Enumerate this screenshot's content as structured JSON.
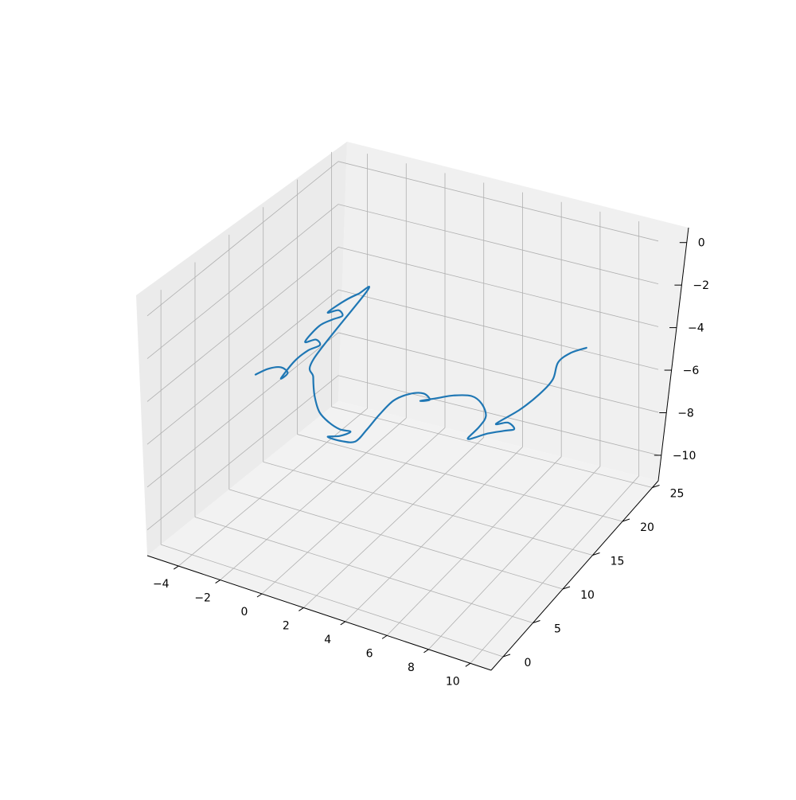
{
  "chart_data": {
    "type": "line3d",
    "title": "",
    "xlabel": "",
    "ylabel": "",
    "zlabel": "",
    "grid": true,
    "legend": "none",
    "series_color": "#1f77b4",
    "pane_colors": {
      "floor": "#f2f2f2",
      "left": "#ebebeb",
      "back": "#f0f0f0"
    },
    "x_ticks": [
      "−4",
      "−2",
      "0",
      "2",
      "4",
      "6",
      "8",
      "10"
    ],
    "y_ticks": [
      "0",
      "5",
      "10",
      "15",
      "20",
      "25"
    ],
    "z_ticks": [
      "−10",
      "−8",
      "−6",
      "−4",
      "−2",
      "0"
    ],
    "x_tick_values": [
      -4,
      -2,
      0,
      2,
      4,
      6,
      8,
      10
    ],
    "y_tick_values": [
      0,
      5,
      10,
      15,
      20,
      25
    ],
    "z_tick_values": [
      -10,
      -8,
      -6,
      -4,
      -2,
      0
    ],
    "xlim": [
      -5.5,
      11
    ],
    "ylim": [
      -2,
      26
    ],
    "zlim": [
      -11.2,
      0.7
    ],
    "series": [
      {
        "values_note": "approximate trace of the 3D curve (x, y, z)",
        "points": [
          [
            -4.7,
            11.5,
            -6.0
          ],
          [
            -4.3,
            12.2,
            -5.8
          ],
          [
            -3.8,
            12.6,
            -5.7
          ],
          [
            -3.4,
            12.4,
            -5.8
          ],
          [
            -3.6,
            12.0,
            -6.0
          ],
          [
            -3.1,
            12.5,
            -5.2
          ],
          [
            -2.6,
            13.0,
            -4.7
          ],
          [
            -2.2,
            13.6,
            -4.5
          ],
          [
            -2.5,
            13.9,
            -4.4
          ],
          [
            -2.9,
            13.5,
            -4.5
          ],
          [
            -2.5,
            14.4,
            -3.9
          ],
          [
            -2.0,
            14.9,
            -3.6
          ],
          [
            -1.6,
            15.2,
            -3.4
          ],
          [
            -1.9,
            15.5,
            -3.3
          ],
          [
            -2.3,
            15.1,
            -3.4
          ],
          [
            -1.7,
            15.9,
            -2.9
          ],
          [
            -1.2,
            16.4,
            -2.6
          ],
          [
            -0.9,
            16.8,
            -2.5
          ],
          [
            -2.3,
            13.0,
            -5.0
          ],
          [
            -2.0,
            12.0,
            -5.5
          ],
          [
            -1.6,
            11.0,
            -6.0
          ],
          [
            -1.1,
            10.2,
            -6.4
          ],
          [
            -0.5,
            9.8,
            -6.6
          ],
          [
            0.1,
            9.6,
            -6.7
          ],
          [
            0.6,
            9.7,
            -6.7
          ],
          [
            0.2,
            9.3,
            -6.9
          ],
          [
            -0.3,
            9.0,
            -7.0
          ],
          [
            0.4,
            9.0,
            -7.0
          ],
          [
            1.0,
            9.2,
            -6.9
          ],
          [
            1.3,
            10.0,
            -6.5
          ],
          [
            1.6,
            11.0,
            -6.0
          ],
          [
            2.0,
            12.0,
            -5.5
          ],
          [
            2.6,
            12.6,
            -5.2
          ],
          [
            3.2,
            12.9,
            -5.1
          ],
          [
            3.6,
            12.6,
            -5.2
          ],
          [
            3.2,
            12.4,
            -5.3
          ],
          [
            3.9,
            12.8,
            -5.1
          ],
          [
            4.6,
            13.2,
            -4.9
          ],
          [
            5.4,
            13.5,
            -4.8
          ],
          [
            6.0,
            13.2,
            -4.9
          ],
          [
            6.4,
            12.6,
            -5.2
          ],
          [
            6.3,
            11.8,
            -5.5
          ],
          [
            6.0,
            11.0,
            -5.9
          ],
          [
            6.8,
            11.6,
            -5.6
          ],
          [
            7.5,
            12.0,
            -5.4
          ],
          [
            7.9,
            12.3,
            -5.3
          ],
          [
            7.5,
            12.6,
            -5.2
          ],
          [
            7.0,
            12.3,
            -5.3
          ],
          [
            7.8,
            13.5,
            -4.8
          ],
          [
            8.4,
            14.8,
            -4.3
          ],
          [
            8.7,
            16.0,
            -3.9
          ],
          [
            8.6,
            17.2,
            -3.5
          ],
          [
            9.0,
            18.0,
            -3.2
          ],
          [
            9.6,
            18.6,
            -3.0
          ]
        ]
      }
    ]
  }
}
